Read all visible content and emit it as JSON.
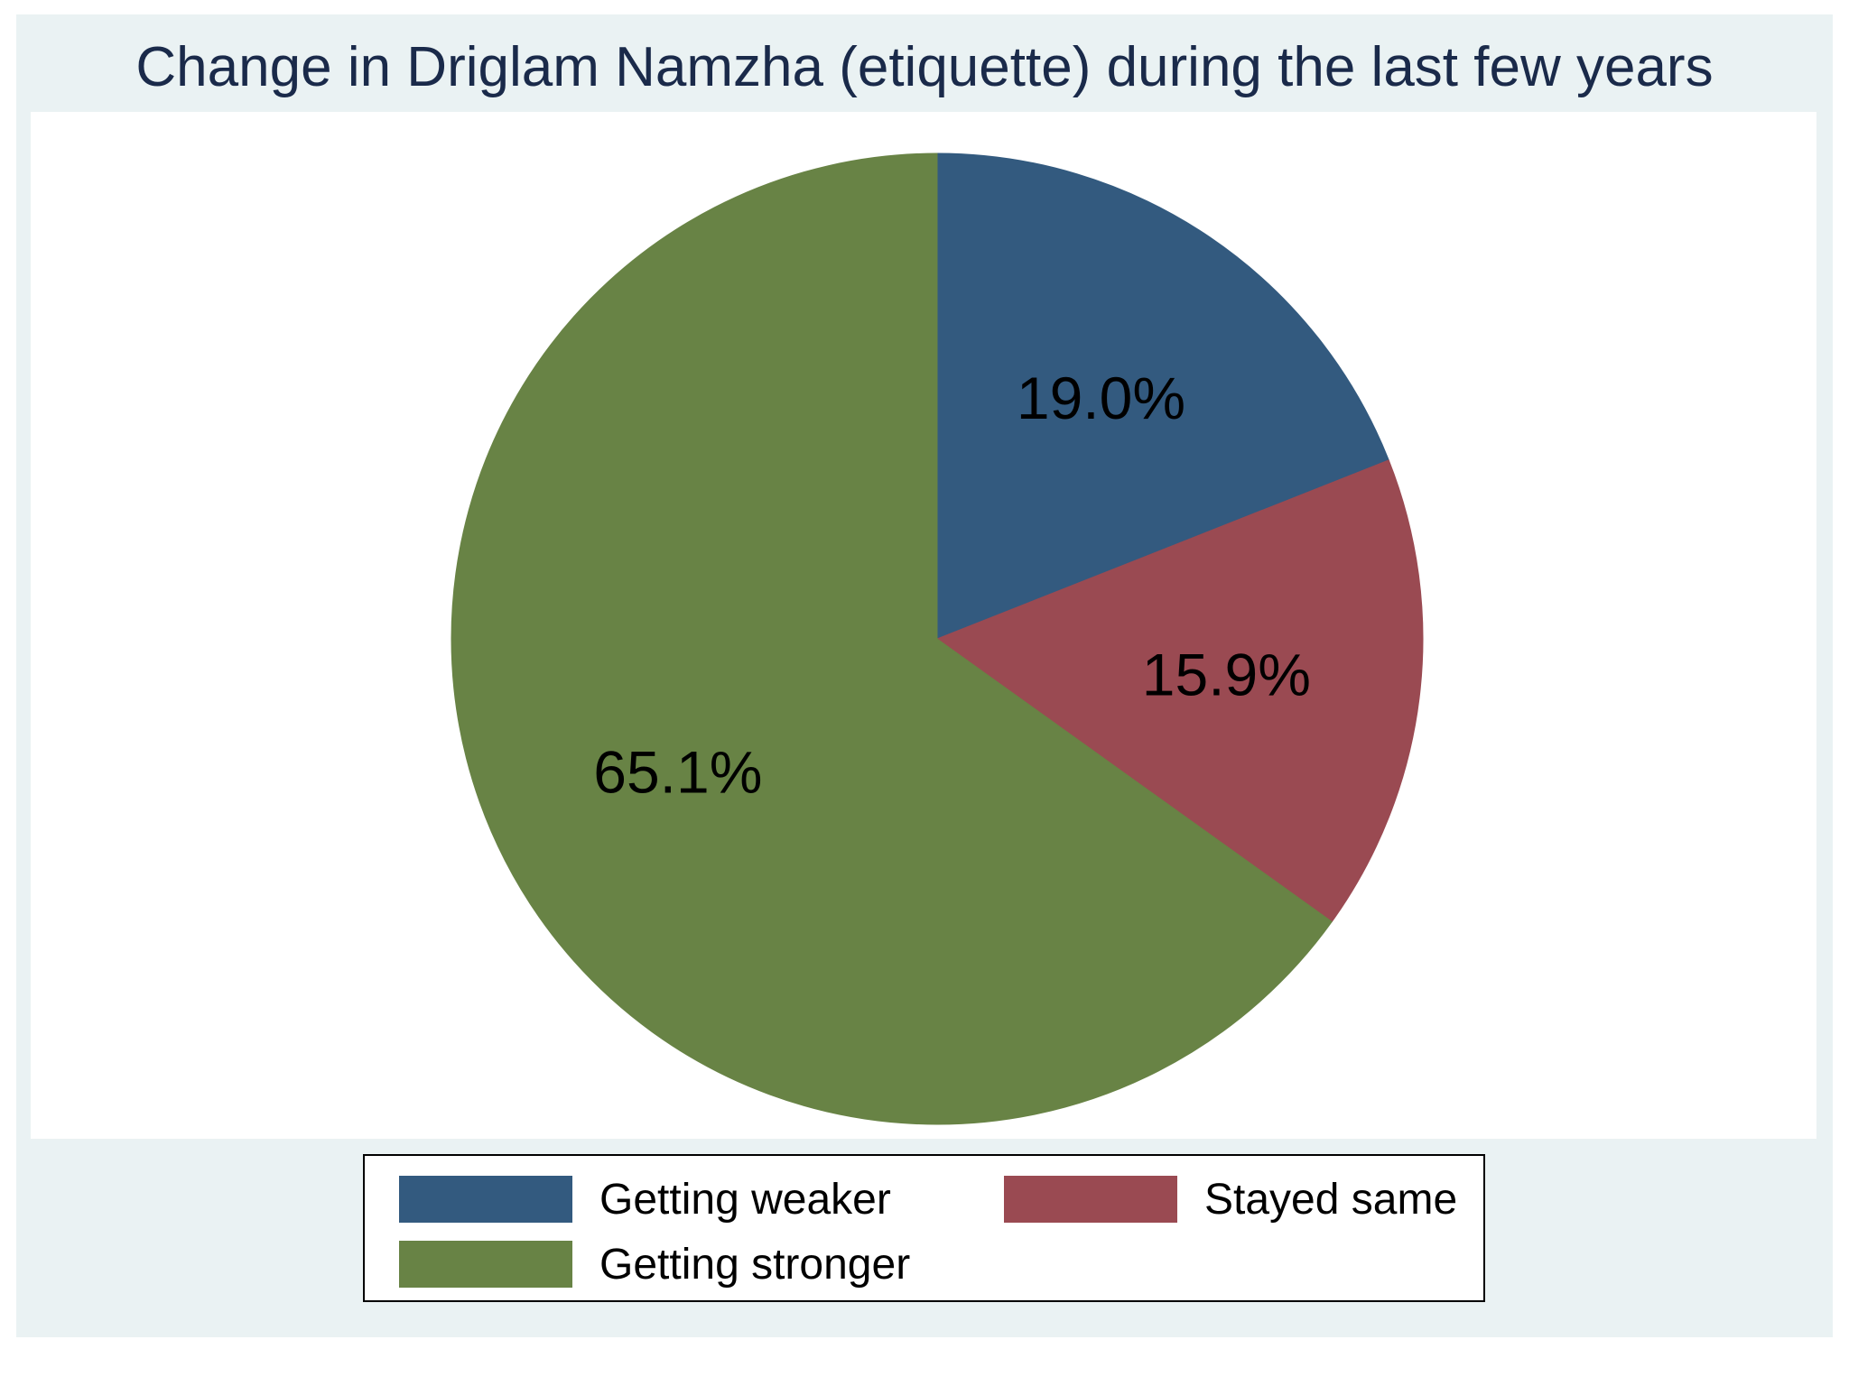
{
  "chart_data": {
    "type": "pie",
    "title": "Change in Driglam Namzha (etiquette) during the last few years",
    "slices": [
      {
        "label": "Getting weaker",
        "value": 19.0,
        "value_label": "19.0%",
        "color": "#335a7f"
      },
      {
        "label": "Stayed same",
        "value": 15.9,
        "value_label": "15.9%",
        "color": "#9a4a52"
      },
      {
        "label": "Getting stronger",
        "value": 65.1,
        "value_label": "65.1%",
        "color": "#688345"
      }
    ],
    "start": "12 o'clock",
    "direction": "clockwise",
    "legend_position": "bottom"
  }
}
